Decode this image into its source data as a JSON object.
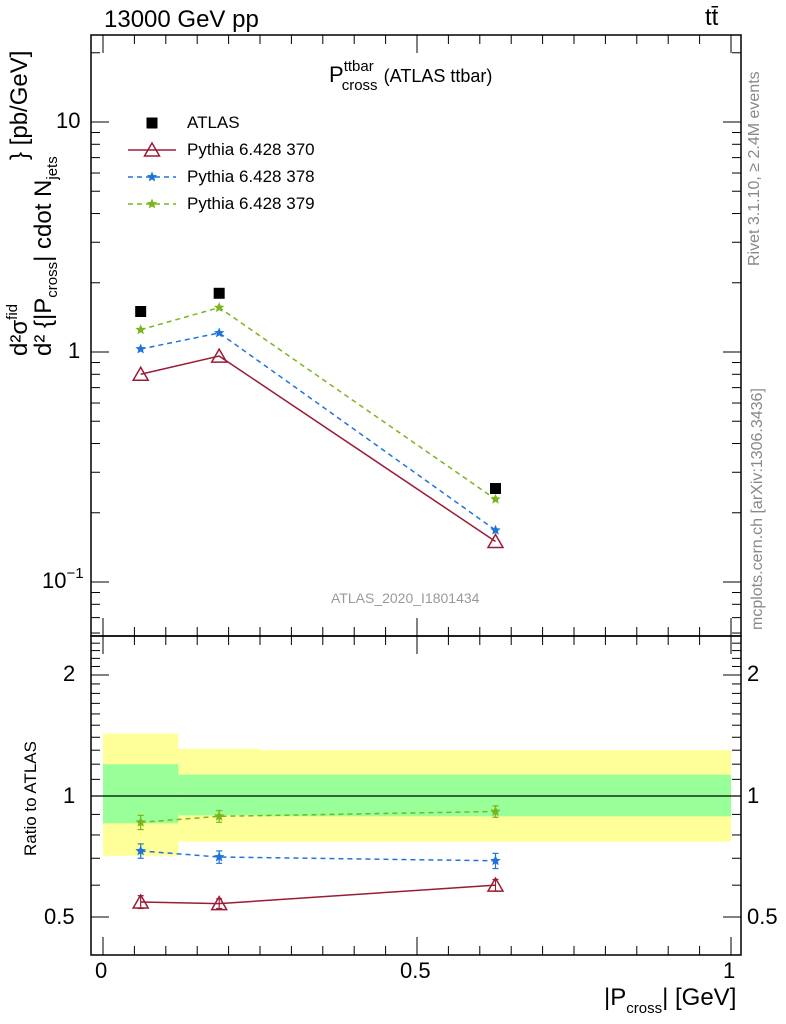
{
  "header": {
    "energy_label": "13000 GeV pp",
    "process_label": "tt̄"
  },
  "side_labels": {
    "rivet": "Rivet 3.1.10, ≥ 2.4M events",
    "mcplots": "mcplots.cern.ch [arXiv:1306.3436]"
  },
  "main_title": {
    "symbol": "P",
    "sup": "ttbar",
    "sub": "cross",
    "suffix": "(ATLAS ttbar)"
  },
  "watermark": "ATLAS_2020_I1801434",
  "ylabel_main": {
    "d_top": "d",
    "sigma": "d²σ",
    "sigma_sup": "fid",
    "denominator": "d² {|P",
    "den_sub": "cross",
    "den_mid": "| cdot N",
    "den_sub2": "jets",
    "tail": "} [pb/GeV]"
  },
  "ylabel_ratio": "Ratio to ATLAS",
  "xlabel": {
    "pre": "|P",
    "sub": "cross",
    "post": "| [GeV]"
  },
  "main_ticks": {
    "ten": "10",
    "one": "1",
    "tenth_base": "10",
    "tenth_exp": "−1"
  },
  "ratio_ticks": [
    "2",
    "1",
    "0.5"
  ],
  "x_ticks": [
    "0",
    "0.5",
    "1"
  ],
  "chart_data": {
    "type": "line",
    "ylog": true,
    "ylim": [
      0.065,
      23
    ],
    "xlim": [
      -0.02,
      1.02
    ],
    "x_edges": [
      0,
      0.12,
      0.25,
      1.0
    ],
    "x": [
      0.06,
      0.185,
      0.625
    ],
    "series": [
      {
        "name": "ATLAS",
        "marker": "square",
        "color": "#000000",
        "values": [
          1.5,
          1.8,
          0.255
        ]
      },
      {
        "name": "Pythia 6.428 370",
        "marker": "triangle-open",
        "line": "solid",
        "color": "#9a1b36",
        "values": [
          0.8,
          0.96,
          0.15
        ]
      },
      {
        "name": "Pythia 6.428 378",
        "marker": "star",
        "line": "dashed",
        "color": "#1f74d8",
        "values": [
          1.03,
          1.21,
          0.168
        ]
      },
      {
        "name": "Pythia 6.428 379",
        "marker": "star",
        "line": "dashed",
        "color": "#7ab51d",
        "values": [
          1.25,
          1.56,
          0.229
        ]
      }
    ],
    "ratio": {
      "ylabel": "Ratio to ATLAS",
      "ylog": true,
      "ylim": [
        0.4,
        2.5
      ],
      "bands": {
        "yellow": [
          [
            0.71,
            1.43
          ],
          [
            0.77,
            1.31
          ],
          [
            0.77,
            1.3
          ]
        ],
        "green": [
          [
            0.855,
            1.2
          ],
          [
            0.895,
            1.13
          ],
          [
            0.89,
            1.13
          ]
        ]
      },
      "series": [
        {
          "name": "Pythia 6.428 370",
          "values": [
            0.545,
            0.54,
            0.6
          ],
          "err": [
            0.02,
            0.015,
            0.02
          ]
        },
        {
          "name": "Pythia 6.428 378",
          "values": [
            0.73,
            0.705,
            0.69
          ],
          "err": [
            0.03,
            0.025,
            0.03
          ]
        },
        {
          "name": "Pythia 6.428 379",
          "values": [
            0.86,
            0.89,
            0.915
          ],
          "err": [
            0.035,
            0.03,
            0.03
          ]
        }
      ]
    }
  }
}
